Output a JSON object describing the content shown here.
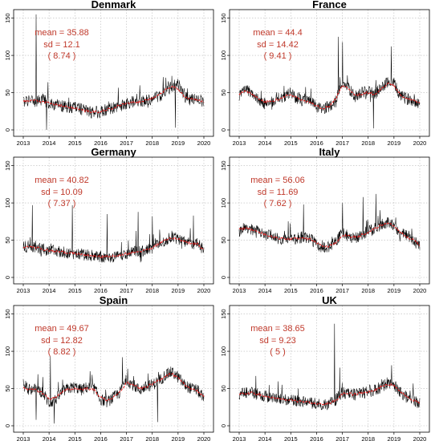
{
  "chart_data": [
    {
      "type": "line",
      "title": "Denmark",
      "stats": {
        "mean": "mean = 35.88",
        "sd": "sd = 12.1",
        "extra": "( 8.74 )"
      },
      "xlim": [
        2013,
        2020
      ],
      "ylim": [
        0,
        155
      ],
      "xticks": [
        "2013",
        "2014",
        "2015",
        "2016",
        "2017",
        "2018",
        "2019",
        "2020"
      ],
      "yticks": [
        "0",
        "50",
        "100",
        "150"
      ],
      "x": [
        2013.0,
        2013.25,
        2013.5,
        2013.75,
        2014.0,
        2014.25,
        2014.5,
        2014.75,
        2015.0,
        2015.25,
        2015.5,
        2015.75,
        2016.0,
        2016.25,
        2016.5,
        2016.75,
        2017.0,
        2017.25,
        2017.5,
        2017.75,
        2018.0,
        2018.25,
        2018.5,
        2018.75,
        2019.0,
        2019.25,
        2019.5,
        2019.75,
        2020.0
      ],
      "values": [
        38,
        40,
        37,
        42,
        35,
        34,
        32,
        30,
        31,
        28,
        25,
        22,
        24,
        28,
        30,
        32,
        35,
        38,
        36,
        40,
        42,
        45,
        50,
        58,
        62,
        45,
        40,
        42,
        38
      ],
      "trend": [
        39,
        39,
        39,
        38,
        36,
        34,
        32,
        30,
        29,
        27,
        25,
        24,
        25,
        27,
        30,
        33,
        35,
        37,
        38,
        40,
        43,
        47,
        53,
        58,
        55,
        45,
        41,
        40,
        38
      ],
      "spikes": [
        {
          "x": 2013.5,
          "y": 155
        },
        {
          "x": 2013.9,
          "y": 0
        },
        {
          "x": 2018.9,
          "y": 3
        }
      ],
      "grid": true
    },
    {
      "type": "line",
      "title": "France",
      "stats": {
        "mean": "mean = 44.4",
        "sd": "sd = 14.42",
        "extra": "( 9.41 )"
      },
      "xlim": [
        2013,
        2020
      ],
      "ylim": [
        0,
        155
      ],
      "xticks": [
        "2013",
        "2014",
        "2015",
        "2016",
        "2017",
        "2018",
        "2019",
        "2020"
      ],
      "yticks": [
        "0",
        "50",
        "100",
        "150"
      ],
      "x": [
        2013.0,
        2013.25,
        2013.5,
        2013.75,
        2014.0,
        2014.25,
        2014.5,
        2014.75,
        2015.0,
        2015.25,
        2015.5,
        2015.75,
        2016.0,
        2016.25,
        2016.5,
        2016.75,
        2017.0,
        2017.25,
        2017.5,
        2017.75,
        2018.0,
        2018.25,
        2018.5,
        2018.75,
        2019.0,
        2019.25,
        2019.5,
        2019.75,
        2020.0
      ],
      "values": [
        45,
        55,
        50,
        40,
        35,
        38,
        42,
        45,
        50,
        42,
        38,
        40,
        30,
        28,
        32,
        40,
        65,
        55,
        45,
        50,
        52,
        48,
        55,
        65,
        62,
        45,
        42,
        40,
        35
      ],
      "trend": [
        48,
        52,
        48,
        42,
        38,
        38,
        41,
        45,
        47,
        43,
        39,
        37,
        32,
        29,
        32,
        42,
        60,
        55,
        47,
        48,
        50,
        48,
        55,
        62,
        60,
        47,
        42,
        40,
        36
      ],
      "spikes": [
        {
          "x": 2016.85,
          "y": 125
        },
        {
          "x": 2017.0,
          "y": 118
        },
        {
          "x": 2018.9,
          "y": 112
        },
        {
          "x": 2018.2,
          "y": 2
        }
      ],
      "grid": true
    },
    {
      "type": "line",
      "title": "Germany",
      "stats": {
        "mean": "mean = 40.82",
        "sd": "sd = 10.09",
        "extra": "( 7.37 )"
      },
      "xlim": [
        2013,
        2020
      ],
      "ylim": [
        0,
        155
      ],
      "xticks": [
        "2013",
        "2014",
        "2015",
        "2016",
        "2017",
        "2018",
        "2019",
        "2020"
      ],
      "yticks": [
        "0",
        "50",
        "100",
        "150"
      ],
      "x": [
        2013.0,
        2013.25,
        2013.5,
        2013.75,
        2014.0,
        2014.25,
        2014.5,
        2014.75,
        2015.0,
        2015.25,
        2015.5,
        2015.75,
        2016.0,
        2016.25,
        2016.5,
        2016.75,
        2017.0,
        2017.25,
        2017.5,
        2017.75,
        2018.0,
        2018.25,
        2018.5,
        2018.75,
        2019.0,
        2019.25,
        2019.5,
        2019.75,
        2020.0
      ],
      "values": [
        40,
        42,
        40,
        38,
        36,
        35,
        34,
        33,
        32,
        31,
        30,
        29,
        28,
        27,
        28,
        30,
        32,
        35,
        34,
        36,
        40,
        45,
        50,
        55,
        52,
        48,
        45,
        47,
        35
      ],
      "trend": [
        40,
        41,
        40,
        38,
        36,
        35,
        34,
        33,
        32,
        31,
        30,
        29,
        28,
        28,
        29,
        30,
        32,
        34,
        35,
        37,
        40,
        45,
        50,
        53,
        52,
        48,
        46,
        45,
        37
      ],
      "spikes": [
        {
          "x": 2013.35,
          "y": 97
        },
        {
          "x": 2014.9,
          "y": 97
        },
        {
          "x": 2016.25,
          "y": 85
        },
        {
          "x": 2017.45,
          "y": 88
        },
        {
          "x": 2018.0,
          "y": 82
        },
        {
          "x": 2019.6,
          "y": 83
        }
      ],
      "grid": true
    },
    {
      "type": "line",
      "title": "Italy",
      "stats": {
        "mean": "mean = 56.06",
        "sd": "sd = 11.69",
        "extra": "( 7.62 )"
      },
      "xlim": [
        2013,
        2020
      ],
      "ylim": [
        0,
        155
      ],
      "xticks": [
        "2013",
        "2014",
        "2015",
        "2016",
        "2017",
        "2018",
        "2019",
        "2020"
      ],
      "yticks": [
        "0",
        "50",
        "100",
        "150"
      ],
      "x": [
        2013.0,
        2013.25,
        2013.5,
        2013.75,
        2014.0,
        2014.25,
        2014.5,
        2014.75,
        2015.0,
        2015.25,
        2015.5,
        2015.75,
        2016.0,
        2016.25,
        2016.5,
        2016.75,
        2017.0,
        2017.25,
        2017.5,
        2017.75,
        2018.0,
        2018.25,
        2018.5,
        2018.75,
        2019.0,
        2019.25,
        2019.5,
        2019.75,
        2020.0
      ],
      "values": [
        62,
        68,
        65,
        62,
        58,
        55,
        52,
        52,
        50,
        52,
        55,
        52,
        45,
        40,
        42,
        48,
        60,
        55,
        52,
        58,
        62,
        65,
        70,
        75,
        70,
        60,
        55,
        50,
        42
      ],
      "trend": [
        65,
        66,
        64,
        61,
        58,
        55,
        53,
        52,
        51,
        52,
        53,
        51,
        46,
        42,
        42,
        47,
        57,
        55,
        54,
        57,
        61,
        65,
        70,
        73,
        69,
        60,
        55,
        50,
        44
      ],
      "spikes": [
        {
          "x": 2015.5,
          "y": 98
        },
        {
          "x": 2017.0,
          "y": 100
        },
        {
          "x": 2018.3,
          "y": 112
        },
        {
          "x": 2017.8,
          "y": 108
        }
      ],
      "grid": true
    },
    {
      "type": "line",
      "title": "Spain",
      "stats": {
        "mean": "mean = 49.67",
        "sd": "sd = 12.82",
        "extra": "( 8.82 )"
      },
      "xlim": [
        2013,
        2020
      ],
      "ylim": [
        0,
        155
      ],
      "xticks": [
        "2013",
        "2014",
        "2015",
        "2016",
        "2017",
        "2018",
        "2019",
        "2020"
      ],
      "yticks": [
        "0",
        "50",
        "100",
        "150"
      ],
      "x": [
        2013.0,
        2013.25,
        2013.5,
        2013.75,
        2014.0,
        2014.25,
        2014.5,
        2014.75,
        2015.0,
        2015.25,
        2015.5,
        2015.75,
        2016.0,
        2016.25,
        2016.5,
        2016.75,
        2017.0,
        2017.25,
        2017.5,
        2017.75,
        2018.0,
        2018.25,
        2018.5,
        2018.75,
        2019.0,
        2019.25,
        2019.5,
        2019.75,
        2020.0
      ],
      "values": [
        55,
        48,
        50,
        45,
        30,
        35,
        45,
        50,
        52,
        48,
        52,
        50,
        35,
        32,
        38,
        45,
        62,
        55,
        48,
        52,
        55,
        60,
        68,
        72,
        65,
        55,
        50,
        48,
        35
      ],
      "trend": [
        52,
        48,
        48,
        44,
        36,
        38,
        45,
        49,
        50,
        49,
        50,
        48,
        38,
        34,
        38,
        45,
        58,
        55,
        50,
        52,
        56,
        61,
        67,
        70,
        64,
        55,
        50,
        47,
        38
      ],
      "spikes": [
        {
          "x": 2014.05,
          "y": 93
        },
        {
          "x": 2016.85,
          "y": 92
        },
        {
          "x": 2013.5,
          "y": 8
        },
        {
          "x": 2014.2,
          "y": 3
        },
        {
          "x": 2018.2,
          "y": 5
        }
      ],
      "grid": true
    },
    {
      "type": "line",
      "title": "UK",
      "stats": {
        "mean": "mean = 38.65",
        "sd": "sd = 9.23",
        "extra": "( 5 )"
      },
      "xlim": [
        2013,
        2020
      ],
      "ylim": [
        0,
        155
      ],
      "xticks": [
        "2013",
        "2014",
        "2015",
        "2016",
        "2017",
        "2018",
        "2019",
        "2020"
      ],
      "yticks": [
        "0",
        "50",
        "100",
        "150"
      ],
      "x": [
        2013.0,
        2013.25,
        2013.5,
        2013.75,
        2014.0,
        2014.25,
        2014.5,
        2014.75,
        2015.0,
        2015.25,
        2015.5,
        2015.75,
        2016.0,
        2016.25,
        2016.5,
        2016.75,
        2017.0,
        2017.25,
        2017.5,
        2017.75,
        2018.0,
        2018.25,
        2018.5,
        2018.75,
        2019.0,
        2019.25,
        2019.5,
        2019.75,
        2020.0
      ],
      "values": [
        42,
        45,
        44,
        42,
        40,
        38,
        36,
        35,
        35,
        33,
        32,
        31,
        30,
        28,
        30,
        35,
        45,
        43,
        42,
        44,
        45,
        48,
        52,
        58,
        55,
        45,
        38,
        33,
        30
      ],
      "trend": [
        43,
        44,
        44,
        42,
        40,
        38,
        36,
        35,
        34,
        33,
        32,
        31,
        30,
        29,
        30,
        34,
        43,
        43,
        42,
        44,
        45,
        48,
        52,
        56,
        54,
        46,
        39,
        34,
        31
      ],
      "spikes": [
        {
          "x": 2016.7,
          "y": 137
        },
        {
          "x": 2016.9,
          "y": 78
        }
      ],
      "grid": true
    }
  ]
}
